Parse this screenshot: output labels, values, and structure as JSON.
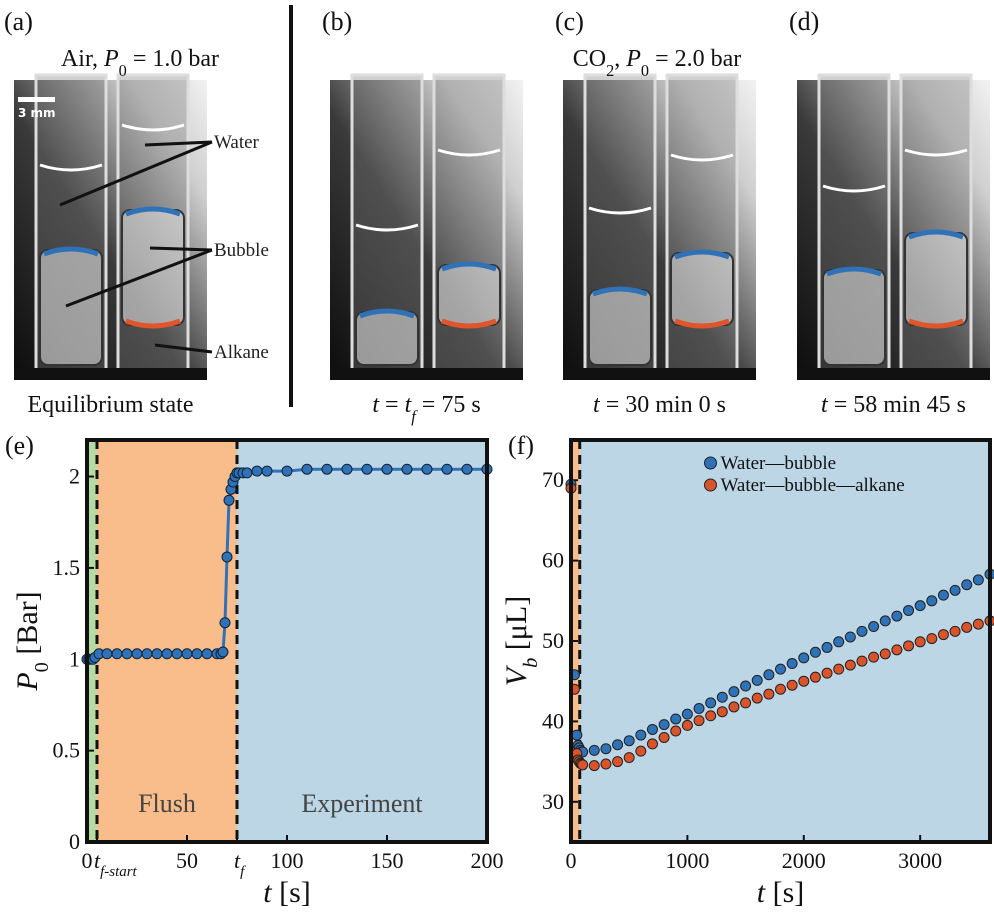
{
  "photos": {
    "letters": [
      "(a)",
      "(b)",
      "(c)",
      "(d)"
    ],
    "headers": [
      [
        {
          "text": "Air, "
        },
        {
          "text": "P",
          "italic": true
        },
        {
          "text": "0",
          "sub": true
        },
        {
          "text": " = 1.0 bar"
        }
      ],
      [
        {
          "text": "CO"
        },
        {
          "text": "2",
          "sub": true
        },
        {
          "text": ", "
        },
        {
          "text": "P",
          "italic": true
        },
        {
          "text": "0",
          "sub": true
        },
        {
          "text": " = 2.0 bar"
        }
      ]
    ],
    "captions": [
      [
        {
          "text": "Equilibrium state"
        }
      ],
      [
        {
          "text": "t",
          "italic": true
        },
        {
          "text": " = "
        },
        {
          "text": "t",
          "italic": true
        },
        {
          "text": "f",
          "sub": true,
          "italic": true
        },
        {
          "text": " = 75 s"
        }
      ],
      [
        {
          "text": "t",
          "italic": true
        },
        {
          "text": " = 30 min 0 s"
        }
      ],
      [
        {
          "text": "t",
          "italic": true
        },
        {
          "text": " = 58 min 45 s"
        }
      ]
    ],
    "labels": {
      "water": "Water",
      "bubble": "Bubble",
      "alkane": "Alkane",
      "scale": "3 mm"
    }
  },
  "chart_data": [
    {
      "type": "line",
      "panel_label": "(e)",
      "xlabel": [
        {
          "text": "t",
          "italic": true
        },
        {
          "text": " [s]"
        }
      ],
      "ylabel": [
        {
          "text": "P",
          "italic": true
        },
        {
          "text": "0",
          "sub": true
        },
        {
          "text": " [Bar]"
        }
      ],
      "xlim": [
        0,
        200
      ],
      "ylim": [
        0,
        2.2
      ],
      "xticks": [
        0,
        {
          "value": 5,
          "label": [
            {
              "text": "t",
              "italic": true
            },
            {
              "text": "f-start",
              "sub": true,
              "italic": true
            }
          ]
        },
        50,
        {
          "value": 75,
          "label": [
            {
              "text": "t",
              "italic": true
            },
            {
              "text": "f",
              "sub": true,
              "italic": true
            }
          ]
        },
        100,
        150,
        200
      ],
      "yticks": [
        0,
        0.5,
        1,
        1.5,
        2
      ],
      "regions": [
        {
          "start": 0,
          "end": 5,
          "color": "#b5daa3"
        },
        {
          "start": 5,
          "end": 75,
          "color": "#f9bd8b",
          "name": "Flush"
        },
        {
          "start": 75,
          "end": 200,
          "color": "#bdd6e6",
          "name": "Experiment"
        }
      ],
      "vlines": [
        5,
        75
      ],
      "color": "#2f72b8",
      "x": [
        0,
        1,
        2,
        3,
        4,
        6,
        10,
        15,
        20,
        25,
        30,
        35,
        40,
        45,
        50,
        55,
        60,
        65,
        67,
        68,
        69,
        70,
        71,
        72,
        73,
        74,
        75,
        76,
        78,
        80,
        85,
        90,
        100,
        110,
        120,
        130,
        140,
        150,
        160,
        170,
        180,
        190,
        200
      ],
      "values": [
        1.0,
        1.0,
        1.0,
        1.0,
        1.01,
        1.03,
        1.03,
        1.03,
        1.03,
        1.03,
        1.03,
        1.03,
        1.03,
        1.03,
        1.03,
        1.03,
        1.03,
        1.03,
        1.03,
        1.04,
        1.2,
        1.56,
        1.87,
        1.93,
        1.97,
        2.0,
        2.02,
        2.02,
        2.02,
        2.02,
        2.03,
        2.03,
        2.03,
        2.04,
        2.04,
        2.04,
        2.04,
        2.04,
        2.04,
        2.04,
        2.04,
        2.04,
        2.04
      ]
    },
    {
      "type": "scatter",
      "panel_label": "(f)",
      "xlabel": [
        {
          "text": "t",
          "italic": true
        },
        {
          "text": " [s]"
        }
      ],
      "ylabel": [
        {
          "text": "V",
          "italic": true
        },
        {
          "text": "b",
          "sub": true,
          "italic": true
        },
        {
          "text": " [μL]"
        }
      ],
      "xlim": [
        0,
        3600
      ],
      "ylim": [
        25,
        75
      ],
      "xticks": [
        0,
        1000,
        2000,
        3000
      ],
      "yticks": [
        30,
        40,
        50,
        60,
        70
      ],
      "regions": [
        {
          "start": 0,
          "end": 75,
          "color": "#f9bd8b"
        },
        {
          "start": 75,
          "end": 3600,
          "color": "#bdd6e6"
        }
      ],
      "vlines": [
        75
      ],
      "legend": "upper center",
      "x": [
        0,
        30,
        50,
        60,
        70,
        80,
        90,
        100,
        200,
        300,
        400,
        500,
        600,
        700,
        800,
        900,
        1000,
        1100,
        1200,
        1300,
        1400,
        1500,
        1600,
        1700,
        1800,
        1900,
        2000,
        2100,
        2200,
        2300,
        2400,
        2500,
        2600,
        2700,
        2800,
        2900,
        3000,
        3100,
        3200,
        3300,
        3400,
        3500,
        3600
      ],
      "series": [
        {
          "name": "Water—bubble",
          "color": "#2f72b8",
          "values": [
            69.5,
            45.8,
            38.3,
            37.0,
            36.7,
            36.4,
            36.2,
            36.2,
            36.4,
            36.6,
            37.1,
            37.6,
            38.3,
            39.0,
            39.6,
            40.3,
            40.9,
            41.6,
            42.3,
            43.0,
            43.7,
            44.4,
            45.1,
            45.8,
            46.5,
            47.2,
            47.9,
            48.6,
            49.2,
            49.9,
            50.5,
            51.2,
            51.8,
            52.5,
            53.1,
            53.8,
            54.4,
            55.0,
            55.7,
            56.3,
            57.0,
            57.6,
            58.3
          ]
        },
        {
          "name": "Water—bubble—alkane",
          "color": "#d9542b",
          "values": [
            69.0,
            44.0,
            36.0,
            35.2,
            35.0,
            34.8,
            34.7,
            34.6,
            34.5,
            34.7,
            35.0,
            35.5,
            36.3,
            37.2,
            38.0,
            38.8,
            39.5,
            40.1,
            40.7,
            41.2,
            41.8,
            42.3,
            42.9,
            43.4,
            44.0,
            44.5,
            45.0,
            45.5,
            46.0,
            46.5,
            47.0,
            47.5,
            48.0,
            48.4,
            48.9,
            49.4,
            49.9,
            50.3,
            50.8,
            51.2,
            51.7,
            52.1,
            52.5
          ]
        }
      ]
    }
  ]
}
